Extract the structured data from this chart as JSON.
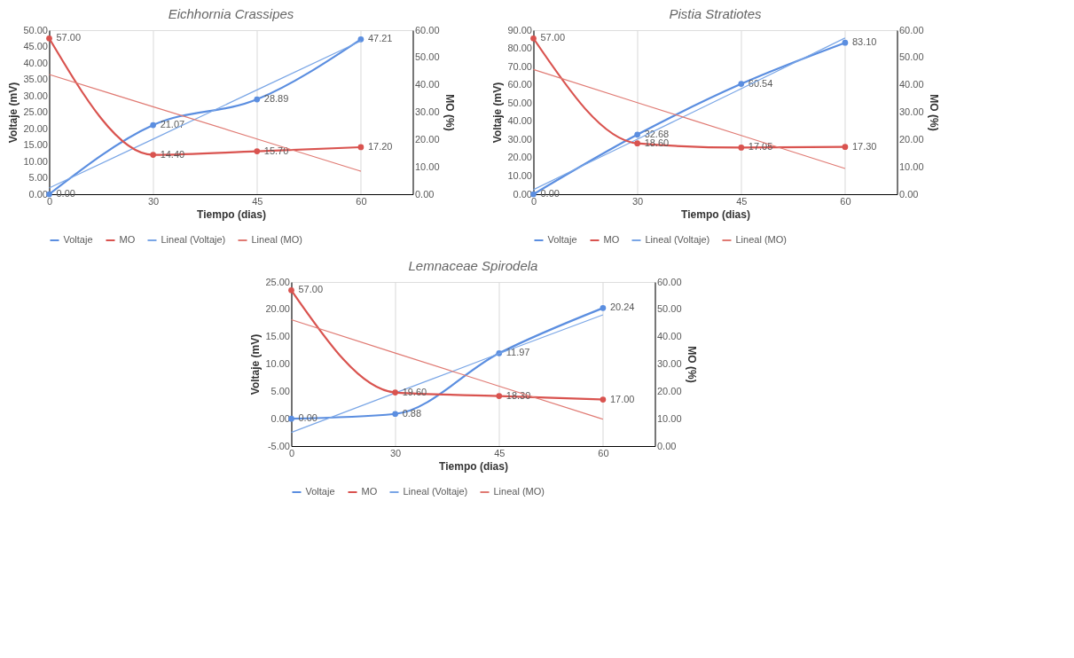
{
  "chart_data": [
    {
      "type": "line",
      "title": "Eichhornia Crassipes",
      "xlabel": "Tiempo (dias)",
      "ylabel": "Voltaje (mV)",
      "y2label": "MO (%)",
      "categories": [
        "0",
        "30",
        "45",
        "60"
      ],
      "grid": "x",
      "legend": "bottom",
      "marker": "circle",
      "ylim": [
        0,
        50
      ],
      "yticks": [
        {
          "value": 0,
          "label": "0.00"
        },
        {
          "value": 5,
          "label": "5.00"
        },
        {
          "value": 10,
          "label": "10.00"
        },
        {
          "value": 15,
          "label": "15.00"
        },
        {
          "value": 20,
          "label": "20.00"
        },
        {
          "value": 25,
          "label": "25.00"
        },
        {
          "value": 30,
          "label": "30.00"
        },
        {
          "value": 35,
          "label": "35.00"
        },
        {
          "value": 40,
          "label": "40.00"
        },
        {
          "value": 45,
          "label": "45.00"
        },
        {
          "value": 50,
          "label": "50.00"
        }
      ],
      "y2lim": [
        0,
        60
      ],
      "y2ticks": [
        {
          "value": 0,
          "label": "0.00"
        },
        {
          "value": 10,
          "label": "10.00"
        },
        {
          "value": 20,
          "label": "20.00"
        },
        {
          "value": 30,
          "label": "30.00"
        },
        {
          "value": 40,
          "label": "40.00"
        },
        {
          "value": 50,
          "label": "50.00"
        },
        {
          "value": 60,
          "label": "60.00"
        }
      ],
      "series": [
        {
          "name": "Voltaje",
          "color": "#5b8ee0",
          "values": [
            0,
            21.07,
            28.89,
            47.21
          ],
          "value_labels": [
            "0.00",
            "21.07",
            "28.89",
            "47.21"
          ]
        },
        {
          "name": "MO",
          "color": "#d9534f",
          "axis": "y2",
          "values": [
            57,
            14.4,
            15.7,
            17.2
          ],
          "value_labels": [
            "57.00",
            "14.40",
            "15.70",
            "17.20"
          ]
        },
        {
          "name": "Lineal (Voltaje)",
          "color": "#7aa6e6",
          "marker": "none",
          "values": [
            1.9,
            16.8,
            31.8,
            46.7
          ]
        },
        {
          "name": "Lineal (MO)",
          "color": "#e07a73",
          "marker": "none",
          "axis": "y2",
          "values": [
            43.8,
            32,
            20.2,
            8.4
          ]
        }
      ]
    },
    {
      "type": "line",
      "title": "Pistia Stratiotes",
      "xlabel": "Tiempo (dias)",
      "ylabel": "Voltaje (mV)",
      "y2label": "MO (%)",
      "categories": [
        "0",
        "30",
        "45",
        "60"
      ],
      "grid": "x",
      "legend": "bottom",
      "marker": "circle",
      "ylim": [
        0,
        90
      ],
      "yticks": [
        {
          "value": 0,
          "label": "0.00"
        },
        {
          "value": 10,
          "label": "10.00"
        },
        {
          "value": 20,
          "label": "20.00"
        },
        {
          "value": 30,
          "label": "30.00"
        },
        {
          "value": 40,
          "label": "40.00"
        },
        {
          "value": 50,
          "label": "50.00"
        },
        {
          "value": 60,
          "label": "60.00"
        },
        {
          "value": 70,
          "label": "70.00"
        },
        {
          "value": 80,
          "label": "80.00"
        },
        {
          "value": 90,
          "label": "90.00"
        }
      ],
      "y2lim": [
        0,
        60
      ],
      "y2ticks": [
        {
          "value": 0,
          "label": "0.00"
        },
        {
          "value": 10,
          "label": "10.00"
        },
        {
          "value": 20,
          "label": "20.00"
        },
        {
          "value": 30,
          "label": "30.00"
        },
        {
          "value": 40,
          "label": "40.00"
        },
        {
          "value": 50,
          "label": "50.00"
        },
        {
          "value": 60,
          "label": "60.00"
        }
      ],
      "series": [
        {
          "name": "Voltaje",
          "color": "#5b8ee0",
          "values": [
            0,
            32.68,
            60.54,
            83.1
          ],
          "value_labels": [
            "0.00",
            "32.68",
            "60.54",
            "83.10"
          ]
        },
        {
          "name": "MO",
          "color": "#d9534f",
          "axis": "y2",
          "values": [
            57,
            18.6,
            17.05,
            17.3
          ],
          "value_labels": [
            "57.00",
            "18.60",
            "17.05",
            "17.30"
          ]
        },
        {
          "name": "Lineal (Voltaje)",
          "color": "#7aa6e6",
          "marker": "none",
          "values": [
            2.5,
            30.2,
            57.9,
            85.7
          ]
        },
        {
          "name": "Lineal (MO)",
          "color": "#e07a73",
          "marker": "none",
          "axis": "y2",
          "values": [
            45.6,
            33.5,
            21.5,
            9.4
          ]
        }
      ]
    },
    {
      "type": "line",
      "title": "Lemnaceae Spirodela",
      "xlabel": "Tiempo (dias)",
      "ylabel": "Voltaje (mV)",
      "y2label": "MO (%)",
      "categories": [
        "0",
        "30",
        "45",
        "60"
      ],
      "grid": "x",
      "legend": "bottom",
      "marker": "circle",
      "ylim": [
        -5,
        25
      ],
      "yticks": [
        {
          "value": -5,
          "label": "-5.00"
        },
        {
          "value": 0,
          "label": "0.00"
        },
        {
          "value": 5,
          "label": "5.00"
        },
        {
          "value": 10,
          "label": "10.00"
        },
        {
          "value": 15,
          "label": "15.00"
        },
        {
          "value": 20,
          "label": "20.00"
        },
        {
          "value": 25,
          "label": "25.00"
        }
      ],
      "y2lim": [
        0,
        60
      ],
      "y2ticks": [
        {
          "value": 0,
          "label": "0.00"
        },
        {
          "value": 10,
          "label": "10.00"
        },
        {
          "value": 20,
          "label": "20.00"
        },
        {
          "value": 30,
          "label": "30.00"
        },
        {
          "value": 40,
          "label": "40.00"
        },
        {
          "value": 50,
          "label": "50.00"
        },
        {
          "value": 60,
          "label": "60.00"
        }
      ],
      "series": [
        {
          "name": "Voltaje",
          "color": "#5b8ee0",
          "values": [
            0,
            0.88,
            11.97,
            20.24
          ],
          "value_labels": [
            "0.00",
            "0.88",
            "11.97",
            "20.24"
          ]
        },
        {
          "name": "MO",
          "color": "#d9534f",
          "axis": "y2",
          "values": [
            57,
            19.6,
            18.3,
            17
          ],
          "value_labels": [
            "57.00",
            "19.60",
            "18.30",
            "17.00"
          ]
        },
        {
          "name": "Lineal (Voltaje)",
          "color": "#7aa6e6",
          "marker": "none",
          "values": [
            -2.5,
            4.7,
            11.9,
            19
          ]
        },
        {
          "name": "Lineal (MO)",
          "color": "#e07a73",
          "marker": "none",
          "axis": "y2",
          "values": [
            46.2,
            34,
            21.9,
            9.8
          ]
        }
      ]
    }
  ]
}
